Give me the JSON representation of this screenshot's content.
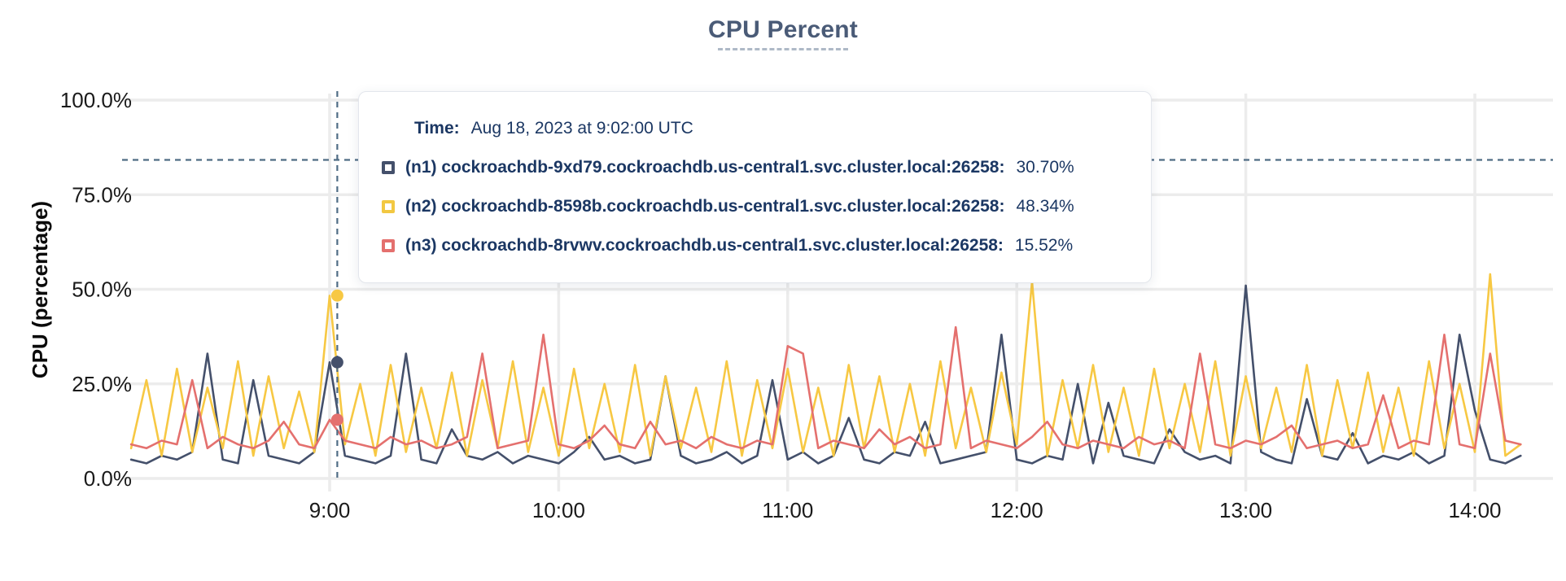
{
  "title": {
    "text": "CPU Percent"
  },
  "tooltip": {
    "time_label": "Time:",
    "time_value": "Aug 18, 2023 at 9:02:00 UTC",
    "rows": [
      {
        "label": "(n1) cockroachdb-9xd79.cockroachdb.us-central1.svc.cluster.local:26258:",
        "value": "30.70%",
        "color": "#44506b"
      },
      {
        "label": "(n2) cockroachdb-8598b.cockroachdb.us-central1.svc.cluster.local:26258:",
        "value": "48.34%",
        "color": "#f2c842"
      },
      {
        "label": "(n3) cockroachdb-8rvwv.cockroachdb.us-central1.svc.cluster.local:26258:",
        "value": "15.52%",
        "color": "#e4706e"
      }
    ]
  },
  "chart_data": {
    "type": "line",
    "title": "CPU Percent",
    "xlabel": "",
    "ylabel": "CPU (percentage)",
    "ylim": [
      0,
      100
    ],
    "grid": true,
    "grid_color": "#ececec",
    "tick_color": "#1a1a1a",
    "x_unit": "minutes-of-day",
    "x_range_min": [
      488,
      852
    ],
    "x_start_min": 488,
    "x_step_min": 4,
    "x_ticks": [
      {
        "min": 540,
        "label": "9:00"
      },
      {
        "min": 600,
        "label": "10:00"
      },
      {
        "min": 660,
        "label": "11:00"
      },
      {
        "min": 720,
        "label": "12:00"
      },
      {
        "min": 780,
        "label": "13:00"
      },
      {
        "min": 840,
        "label": "14:00"
      }
    ],
    "y_ticks": [
      {
        "value": 0,
        "label": "0.0%"
      },
      {
        "value": 25,
        "label": "25.0%"
      },
      {
        "value": 50,
        "label": "50.0%"
      },
      {
        "value": 75,
        "label": "75.0%"
      },
      {
        "value": 100,
        "label": "100.0%"
      }
    ],
    "series": [
      {
        "name": "(n1) cockroachdb-9xd79.cockroachdb.us-central1.svc.cluster.local:26258",
        "color": "#44506b",
        "values": [
          5,
          4,
          6,
          5,
          7,
          33,
          5,
          4,
          26,
          6,
          5,
          4,
          7,
          30.7,
          6,
          5,
          4,
          6,
          33,
          5,
          4,
          13,
          6,
          5,
          7,
          4,
          6,
          5,
          4,
          7,
          11,
          5,
          6,
          4,
          5,
          27,
          6,
          4,
          5,
          7,
          4,
          6,
          26,
          5,
          7,
          4,
          6,
          16,
          5,
          4,
          7,
          6,
          15,
          4,
          5,
          6,
          7,
          38,
          5,
          4,
          6,
          5,
          25,
          4,
          20,
          6,
          5,
          4,
          13,
          7,
          5,
          6,
          4,
          51,
          7,
          5,
          4,
          21,
          6,
          5,
          12,
          4,
          6,
          5,
          7,
          4,
          6,
          38,
          18,
          5,
          4,
          6
        ]
      },
      {
        "name": "(n2) cockroachdb-8598b.cockroachdb.us-central1.svc.cluster.local:26258",
        "color": "#f7c843",
        "values": [
          8,
          26,
          6,
          29,
          7,
          24,
          8,
          31,
          6,
          27,
          8,
          23,
          7,
          48.3,
          9,
          25,
          6,
          30,
          7,
          24,
          8,
          28,
          6,
          26,
          8,
          31,
          7,
          24,
          6,
          29,
          8,
          25,
          7,
          30,
          6,
          27,
          8,
          24,
          7,
          31,
          6,
          26,
          8,
          29,
          7,
          24,
          6,
          30,
          8,
          27,
          7,
          25,
          6,
          31,
          8,
          24,
          7,
          28,
          9,
          52,
          6,
          26,
          8,
          30,
          7,
          24,
          6,
          29,
          8,
          25,
          7,
          31,
          6,
          27,
          8,
          24,
          7,
          30,
          6,
          26,
          8,
          28,
          7,
          24,
          6,
          31,
          8,
          25,
          7,
          54,
          6,
          9
        ]
      },
      {
        "name": "(n3) cockroachdb-8rvwv.cockroachdb.us-central1.svc.cluster.local:26258",
        "color": "#e4706e",
        "values": [
          9,
          8,
          10,
          9,
          26,
          8,
          11,
          9,
          8,
          10,
          15,
          9,
          8,
          15.5,
          10,
          9,
          8,
          11,
          9,
          10,
          8,
          9,
          11,
          33,
          8,
          9,
          10,
          38,
          9,
          8,
          10,
          14,
          9,
          8,
          15,
          9,
          10,
          8,
          11,
          9,
          8,
          10,
          9,
          35,
          33,
          8,
          10,
          9,
          8,
          13,
          9,
          11,
          8,
          9,
          40,
          8,
          10,
          9,
          8,
          11,
          15,
          9,
          8,
          10,
          9,
          8,
          11,
          9,
          10,
          8,
          33,
          9,
          8,
          10,
          9,
          11,
          14,
          8,
          9,
          10,
          8,
          9,
          22,
          8,
          10,
          9,
          38,
          9,
          8,
          33,
          10,
          9
        ]
      }
    ],
    "crosshair": {
      "x_min": 542,
      "y_value": 84.2,
      "color": "#4f6c85"
    },
    "hover": {
      "time_min": 542,
      "time_text": "Aug 18, 2023 at 9:02:00 UTC",
      "values": [
        30.7,
        48.34,
        15.52
      ]
    }
  }
}
